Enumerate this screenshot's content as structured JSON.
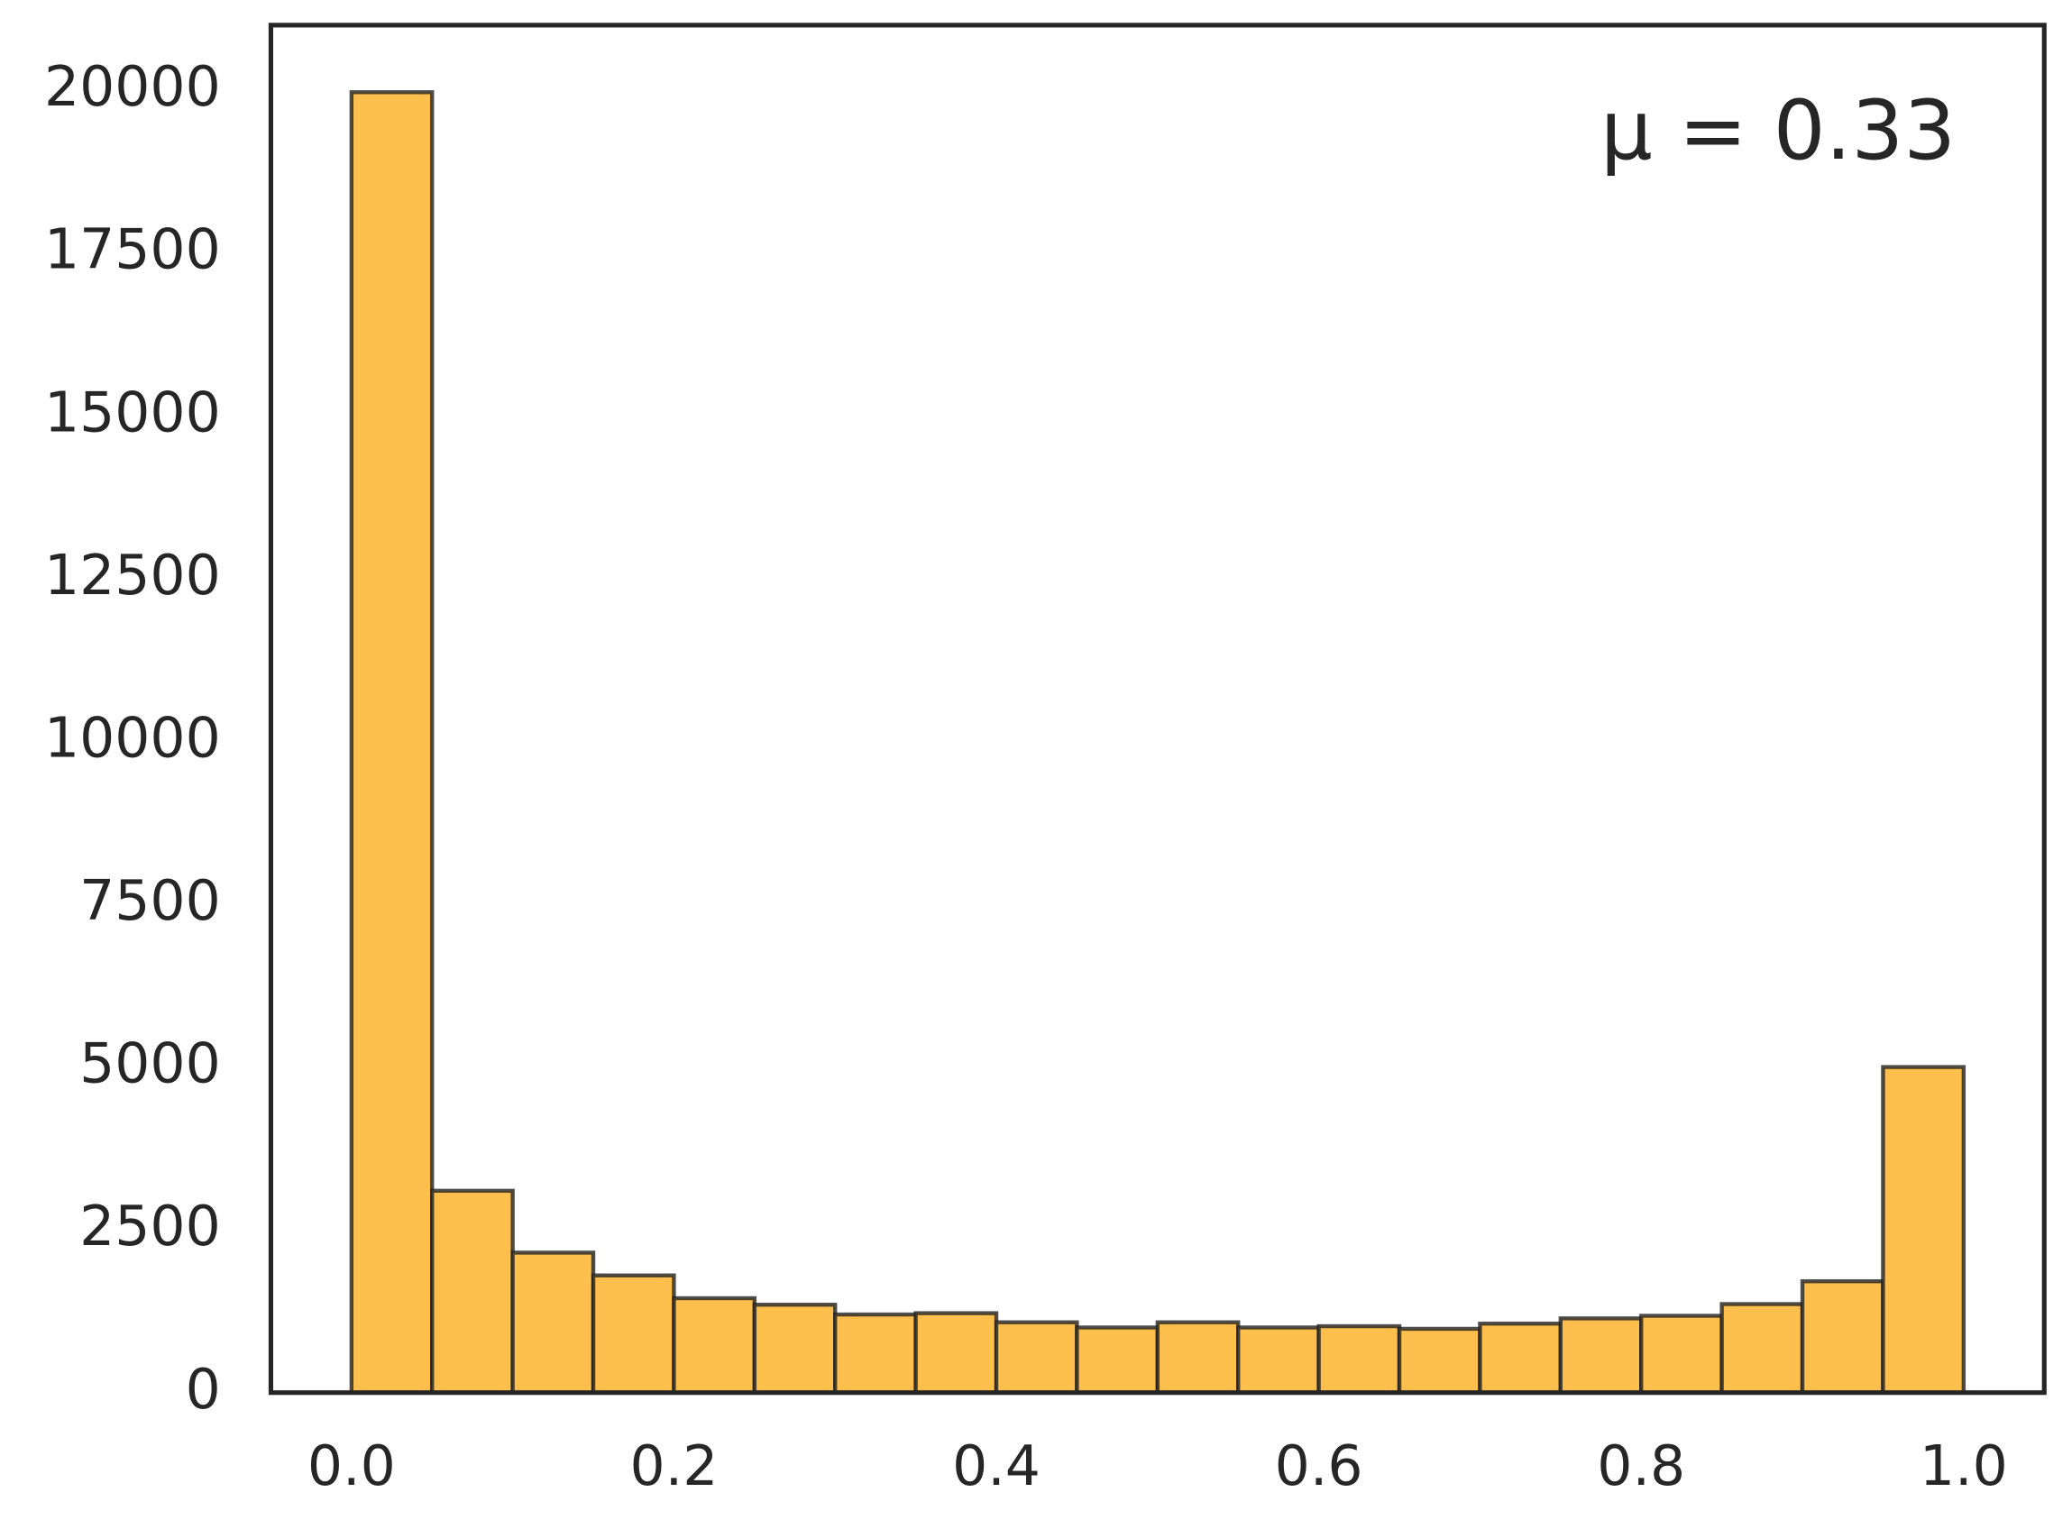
{
  "chart_data": {
    "type": "histogram",
    "annotation": "μ = 0.33",
    "bins": [
      0,
      0.05,
      0.1,
      0.15,
      0.2,
      0.25,
      0.3,
      0.35,
      0.4,
      0.45,
      0.5,
      0.55,
      0.6,
      0.65,
      0.7,
      0.75,
      0.8,
      0.85,
      0.9,
      0.95,
      1
    ],
    "counts": [
      19970,
      3100,
      2150,
      1800,
      1450,
      1350,
      1200,
      1220,
      1080,
      1000,
      1080,
      1000,
      1020,
      980,
      1060,
      1140,
      1180,
      1360,
      1710,
      5000
    ],
    "color": "#ffbf4d",
    "edgecolor": "#222222",
    "xlim": [
      -0.05,
      1.05
    ],
    "ylim": [
      0,
      21000
    ],
    "xticks": [
      {
        "value": 0,
        "label": "0.0"
      },
      0.2,
      0.4,
      0.6,
      0.8,
      {
        "value": 1,
        "label": "1.0"
      }
    ],
    "yticks": [
      0,
      2500,
      5000,
      7500,
      10000,
      12500,
      15000,
      17500,
      20000
    ],
    "grid": false
  }
}
